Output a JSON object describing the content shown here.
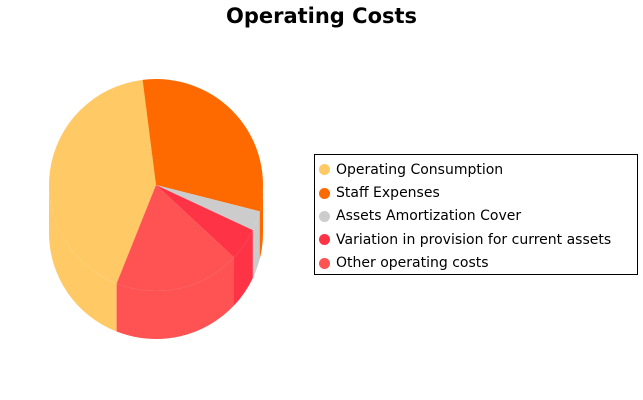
{
  "chart_data": {
    "type": "pie",
    "title": "Operating Costs",
    "legend_position": "right",
    "slices": [
      {
        "label": "Operating Consumption",
        "value": 42,
        "color": "#FFC966"
      },
      {
        "label": "Staff Expenses",
        "value": 31,
        "color": "#FF6A00"
      },
      {
        "label": "Assets Amortization Cover",
        "value": 3,
        "color": "#CCCCCC"
      },
      {
        "label": "Variation in provision for current assets",
        "value": 5,
        "color": "#FF3346"
      },
      {
        "label": "Other operating costs",
        "value": 19,
        "color": "#FF5252"
      }
    ]
  }
}
